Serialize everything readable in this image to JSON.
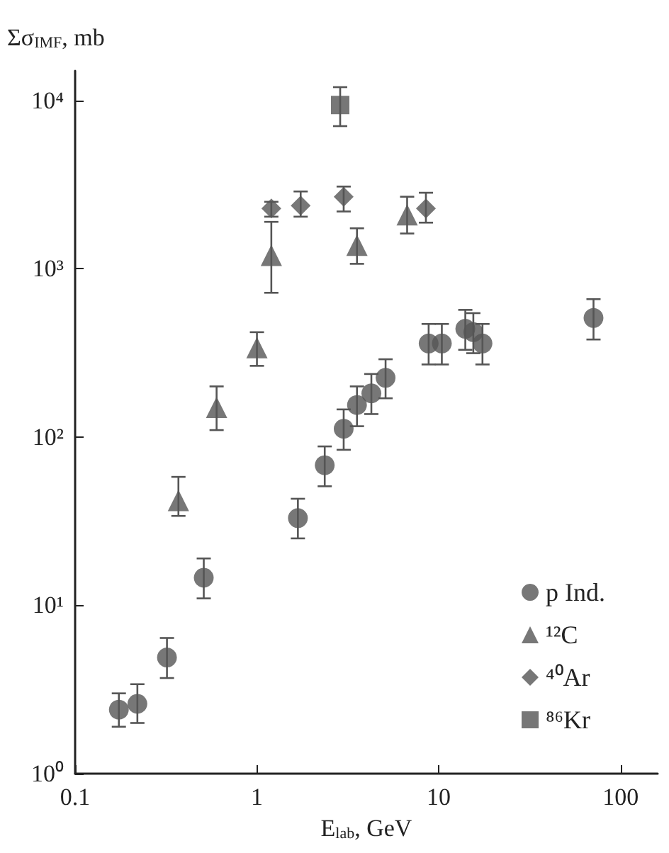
{
  "chart_data": {
    "type": "scatter",
    "ylabel": "Σσ$_{IMF}$, mb",
    "xlabel": "E$_{lab}$, GeV",
    "log": "xy",
    "grid": false,
    "legend": "bottom right",
    "xlim": [
      0.1,
      160
    ],
    "ylim": [
      1,
      15000
    ],
    "xticks": [
      0.1,
      1,
      10,
      100
    ],
    "yticks": [
      {
        "value": 1,
        "label": "10⁰"
      },
      {
        "value": 10,
        "label": "10¹"
      },
      {
        "value": 100,
        "label": "10²"
      },
      {
        "value": 1000,
        "label": "10³"
      },
      {
        "value": 10000,
        "label": "10⁴"
      }
    ],
    "series": [
      {
        "name": "p Ind.",
        "marker": "circle",
        "color": "#555555",
        "x": [
          0.174,
          0.22,
          0.32,
          0.51,
          1.68,
          2.36,
          3.0,
          3.55,
          4.26,
          5.1,
          8.8,
          10.4,
          14.0,
          15.5,
          17.4,
          71
        ],
        "values": [
          2.4,
          2.6,
          4.9,
          14.6,
          33,
          68,
          112,
          155,
          182,
          225,
          360,
          360,
          440,
          420,
          360,
          510
        ],
        "errors": [
          [
            1.9,
            3.0
          ],
          [
            2.0,
            3.4
          ],
          [
            3.7,
            6.4
          ],
          [
            11,
            19
          ],
          [
            25,
            43
          ],
          [
            51,
            88
          ],
          [
            84,
            146
          ],
          [
            116,
            200
          ],
          [
            137,
            237
          ],
          [
            170,
            290
          ],
          [
            270,
            470
          ],
          [
            270,
            470
          ],
          [
            330,
            570
          ],
          [
            315,
            545
          ],
          [
            270,
            470
          ],
          [
            380,
            660
          ]
        ]
      },
      {
        "name": "¹²C",
        "marker": "triangle",
        "color": "#555555",
        "x": [
          0.37,
          0.6,
          1.0,
          1.2,
          3.55,
          6.7
        ],
        "values": [
          42,
          150,
          340,
          1200,
          1380,
          2090
        ],
        "errors": [
          [
            34,
            58
          ],
          [
            110,
            200
          ],
          [
            265,
            420
          ],
          [
            720,
            1900
          ],
          [
            1070,
            1740
          ],
          [
            1620,
            2680
          ]
        ]
      },
      {
        "name": "⁴⁰Ar",
        "marker": "diamond",
        "color": "#555555",
        "x": [
          1.2,
          1.74,
          3.0,
          8.5
        ],
        "values": [
          2280,
          2370,
          2680,
          2280
        ],
        "errors": [
          [
            2040,
            2500
          ],
          [
            2040,
            2880
          ],
          [
            2190,
            3080
          ],
          [
            1880,
            2830
          ]
        ]
      },
      {
        "name": "⁸⁶Kr",
        "marker": "square",
        "color": "#555555",
        "x": [
          2.87
        ],
        "values": [
          9400
        ],
        "errors": [
          [
            7040,
            12000
          ]
        ]
      }
    ]
  }
}
